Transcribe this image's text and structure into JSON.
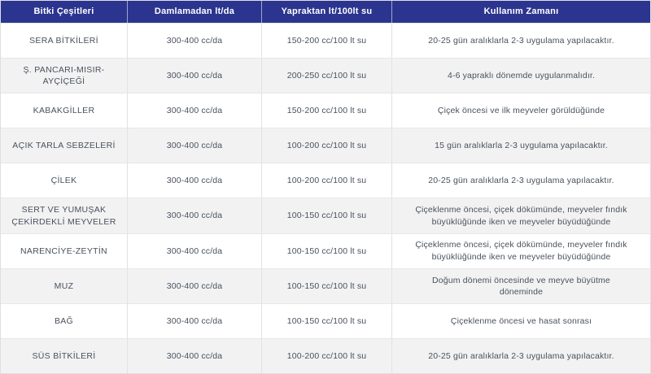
{
  "table": {
    "headers": [
      "Bitki Çeşitleri",
      "Damlamadan lt/da",
      "Yapraktan lt/100lt su",
      "Kullanım Zamanı"
    ],
    "rows": [
      {
        "plant": "SERA BİTKİLERİ",
        "drip": "300-400 cc/da",
        "foliar": "150-200 cc/100 lt su",
        "timing": "20-25 gün aralıklarla 2-3 uygulama yapılacaktır."
      },
      {
        "plant": "Ş. PANCARI-MISIR-\nAYÇİÇEĞİ",
        "drip": "300-400 cc/da",
        "foliar": "200-250 cc/100 lt su",
        "timing": "4-6 yapraklı dönemde uygulanmalıdır."
      },
      {
        "plant": "KABAKGİLLER",
        "drip": "300-400 cc/da",
        "foliar": "150-200 cc/100 lt su",
        "timing": "Çiçek öncesi ve ilk meyveler görüldüğünde"
      },
      {
        "plant": "AÇIK TARLA SEBZELERİ",
        "drip": "300-400 cc/da",
        "foliar": "100-200 cc/100 lt su",
        "timing": "15 gün aralıklarla 2-3 uygulama yapılacaktır."
      },
      {
        "plant": "ÇİLEK",
        "drip": "300-400 cc/da",
        "foliar": "100-200 cc/100 lt su",
        "timing": "20-25 gün aralıklarla 2-3 uygulama yapılacaktır."
      },
      {
        "plant": "SERT VE YUMUŞAK\nÇEKİRDEKLİ MEYVELER",
        "drip": "300-400 cc/da",
        "foliar": "100-150 cc/100 lt su",
        "timing": "Çiçeklenme öncesi, çiçek dökümünde, meyveler fındık\nbüyüklüğünde iken ve meyveler büyüdüğünde"
      },
      {
        "plant": "NARENCİYE-ZEYTİN",
        "drip": "300-400 cc/da",
        "foliar": "100-150 cc/100 lt su",
        "timing": "Çiçeklenme öncesi, çiçek dökümünde, meyveler fındık\nbüyüklüğünde iken ve meyveler büyüdüğünde"
      },
      {
        "plant": "MUZ",
        "drip": "300-400 cc/da",
        "foliar": "100-150 cc/100 lt su",
        "timing": "Doğum dönemi öncesinde ve meyve büyütme\ndöneminde"
      },
      {
        "plant": "BAĞ",
        "drip": "300-400 cc/da",
        "foliar": "100-150 cc/100 lt su",
        "timing": "Çiçeklenme öncesi ve hasat sonrası"
      },
      {
        "plant": "SÜS BİTKİLERİ",
        "drip": "300-400 cc/da",
        "foliar": "100-200 cc/100 lt su",
        "timing": "20-25 gün aralıklarla 2-3 uygulama yapılacaktır."
      }
    ],
    "colors": {
      "header_bg": "#2b3590",
      "header_text": "#ffffff",
      "row_alt_bg": "#f2f2f3",
      "body_text": "#49515c",
      "border": "#e2e2e6"
    }
  }
}
